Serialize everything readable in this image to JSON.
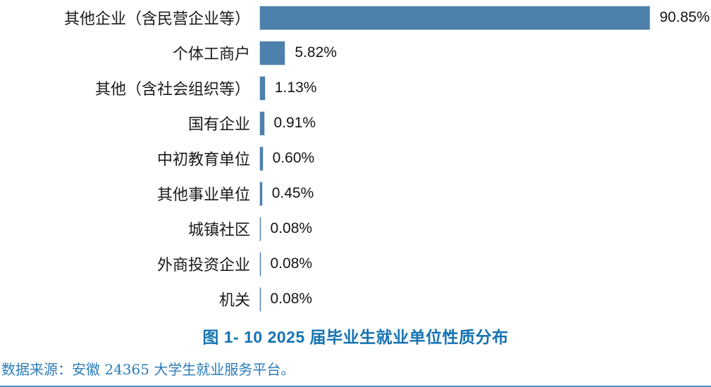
{
  "chart_data": {
    "type": "bar",
    "orientation": "horizontal",
    "title": "图 1- 10  2025 届毕业生就业单位性质分布",
    "categories": [
      "其他企业（含民营企业等）",
      "个体工商户",
      "其他（含社会组织等）",
      "国有企业",
      "中初教育单位",
      "其他事业单位",
      "城镇社区",
      "外商投资企业",
      "机关"
    ],
    "values": [
      90.85,
      5.82,
      1.13,
      0.91,
      0.6,
      0.45,
      0.08,
      0.08,
      0.08
    ],
    "value_labels": [
      "90.85%",
      "5.82%",
      "1.13%",
      "0.91%",
      "0.60%",
      "0.45%",
      "0.08%",
      "0.08%",
      "0.08%"
    ],
    "xlim": [
      0,
      100
    ],
    "grid": false,
    "legend": false,
    "axis_labels_shown": false
  },
  "source_note": "数据来源：安徽 24365 大学生就业服务平台。",
  "colors": {
    "bar_fill": "#4e80ac",
    "bar_border": "#cfe0ef",
    "title_text": "#1573b2",
    "note_text": "#2b7cba",
    "label_text": "#1a1a1a",
    "bottom_rule": "#4a90c6"
  }
}
